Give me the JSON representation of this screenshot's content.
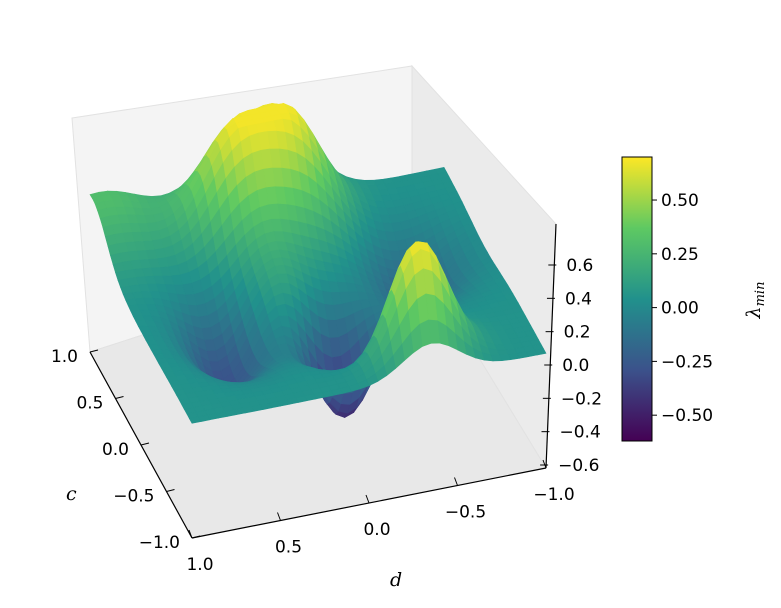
{
  "chart_data": {
    "type": "surface",
    "x_label": "d",
    "y_label": "c",
    "z_label": "λ",
    "z_label_sub": "min",
    "x_range": [
      -1.0,
      1.0
    ],
    "y_range": [
      -1.0,
      1.0
    ],
    "z_range": [
      -0.6,
      0.7
    ],
    "x_ticks": [
      "−1.0",
      "−0.5",
      "0.0",
      "0.5",
      "1.0"
    ],
    "y_ticks": [
      "1.0",
      "0.5",
      "0.0",
      "−0.5",
      "−1.0"
    ],
    "z_ticks": [
      "0.6",
      "0.4",
      "0.2",
      "0.0",
      "−0.2",
      "−0.4",
      "−0.6"
    ],
    "colorbar": {
      "ticks": [
        "0.50",
        "0.25",
        "0.00",
        "−0.25",
        "−0.50"
      ],
      "min": -0.62,
      "max": 0.7,
      "colormap": "viridis",
      "stops": [
        "#440154",
        "#3b528b",
        "#21918c",
        "#5ec962",
        "#fde725"
      ]
    },
    "colors": {
      "pane": "#f2f2f2",
      "pane_edge": "#dddddd",
      "axis_line": "#000000"
    }
  }
}
